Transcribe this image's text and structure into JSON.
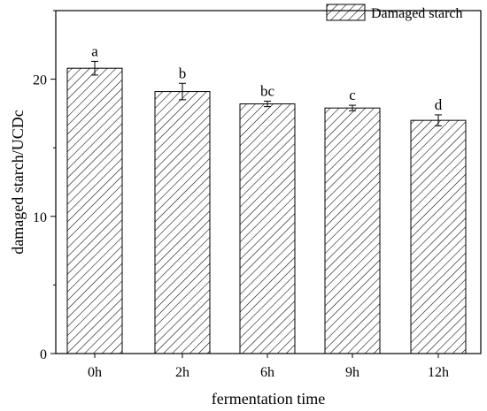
{
  "chart_data": {
    "type": "bar",
    "title": "",
    "xlabel": "fermentation time",
    "ylabel": "damaged starch/UCDc",
    "categories": [
      "0h",
      "2h",
      "6h",
      "9h",
      "12h"
    ],
    "series": [
      {
        "name": "Damaged starch",
        "values": [
          20.8,
          19.1,
          18.2,
          17.9,
          17.0
        ],
        "errors": [
          0.5,
          0.6,
          0.2,
          0.2,
          0.4
        ],
        "labels": [
          "a",
          "b",
          "bc",
          "c",
          "d"
        ],
        "pattern": "diagonal-hatch",
        "fill": "#ffffff",
        "stroke": "#000000"
      }
    ],
    "ylim": [
      0,
      25
    ],
    "yticks": [
      0,
      10,
      20
    ],
    "grid": false,
    "legend_position": "top-right"
  }
}
